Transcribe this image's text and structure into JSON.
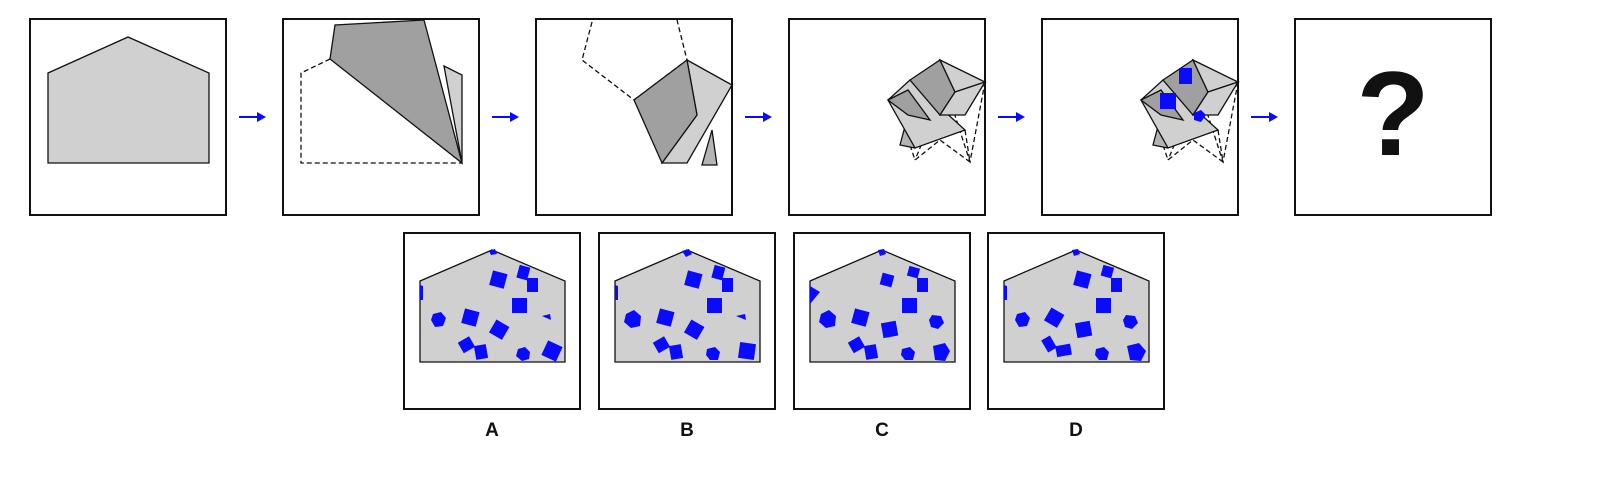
{
  "sequence": {
    "steps": 5,
    "question_mark": "?"
  },
  "options": [
    {
      "label": "A"
    },
    {
      "label": "B"
    },
    {
      "label": "C"
    },
    {
      "label": "D"
    }
  ],
  "colors": {
    "paper": "#d0d0d0",
    "fold_dark": "#a0a0a0",
    "punch_hole": "#0a0aff",
    "arrow": "#0a0aff",
    "outline": "#111111"
  }
}
